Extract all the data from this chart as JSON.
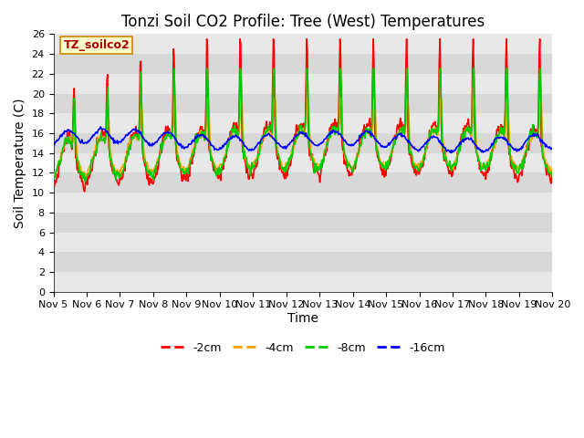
{
  "title": "Tonzi Soil CO2 Profile: Tree (West) Temperatures",
  "ylabel": "Soil Temperature (C)",
  "xlabel": "Time",
  "annotation": "TZ_soilco2",
  "xtick_labels": [
    "Nov 5",
    "Nov 6",
    "Nov 7",
    "Nov 8",
    "Nov 9",
    "Nov 10",
    "Nov 11",
    "Nov 12",
    "Nov 13",
    "Nov 14",
    "Nov 15",
    "Nov 16",
    "Nov 17",
    "Nov 18",
    "Nov 19",
    "Nov 20"
  ],
  "ylim": [
    0,
    26
  ],
  "colors": {
    "-2cm": "#ff0000",
    "-4cm": "#ffa500",
    "-8cm": "#00cc00",
    "-16cm": "#0000ff"
  },
  "legend_labels": [
    "-2cm",
    "-4cm",
    "-8cm",
    "-16cm"
  ],
  "plot_bg_light": "#e8e8e8",
  "plot_bg_dark": "#d0d0d0",
  "title_fontsize": 12,
  "axis_fontsize": 10,
  "tick_fontsize": 8,
  "legend_fontsize": 9,
  "linewidth": 1.2,
  "n_days": 15,
  "pts_per_day": 48
}
